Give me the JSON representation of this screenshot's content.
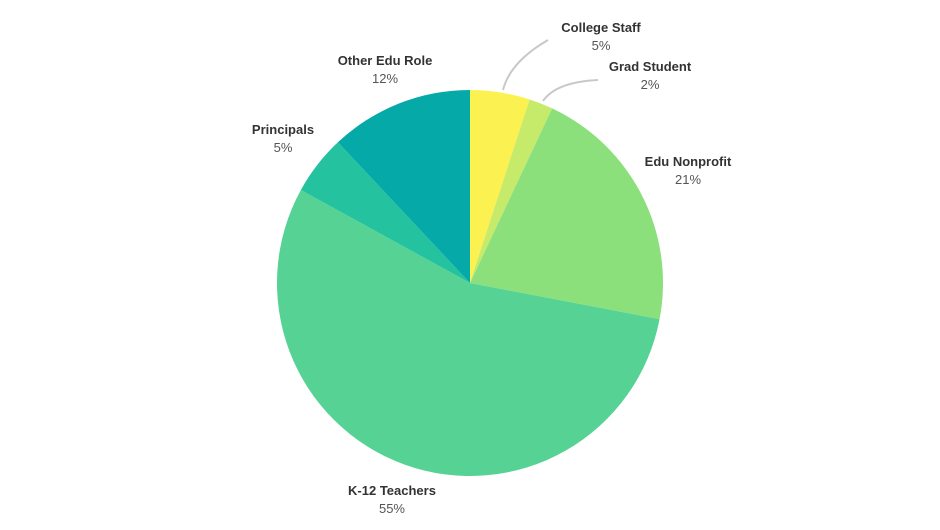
{
  "chart_data": {
    "type": "pie",
    "start": "top",
    "direction": "clockwise",
    "slices": [
      {
        "label": "College Staff",
        "value": 5,
        "display": "5%",
        "color": "#fbf150"
      },
      {
        "label": "Grad Student",
        "value": 2,
        "display": "2%",
        "color": "#c6ea6a"
      },
      {
        "label": "Edu Nonprofit",
        "value": 21,
        "display": "21%",
        "color": "#8ce07c"
      },
      {
        "label": "K-12 Teachers",
        "value": 55,
        "display": "55%",
        "color": "#56d394"
      },
      {
        "label": "Principals",
        "value": 5,
        "display": "5%",
        "color": "#25c2a0"
      },
      {
        "label": "Other Edu Role",
        "value": 12,
        "display": "12%",
        "color": "#04a9a8"
      }
    ]
  }
}
